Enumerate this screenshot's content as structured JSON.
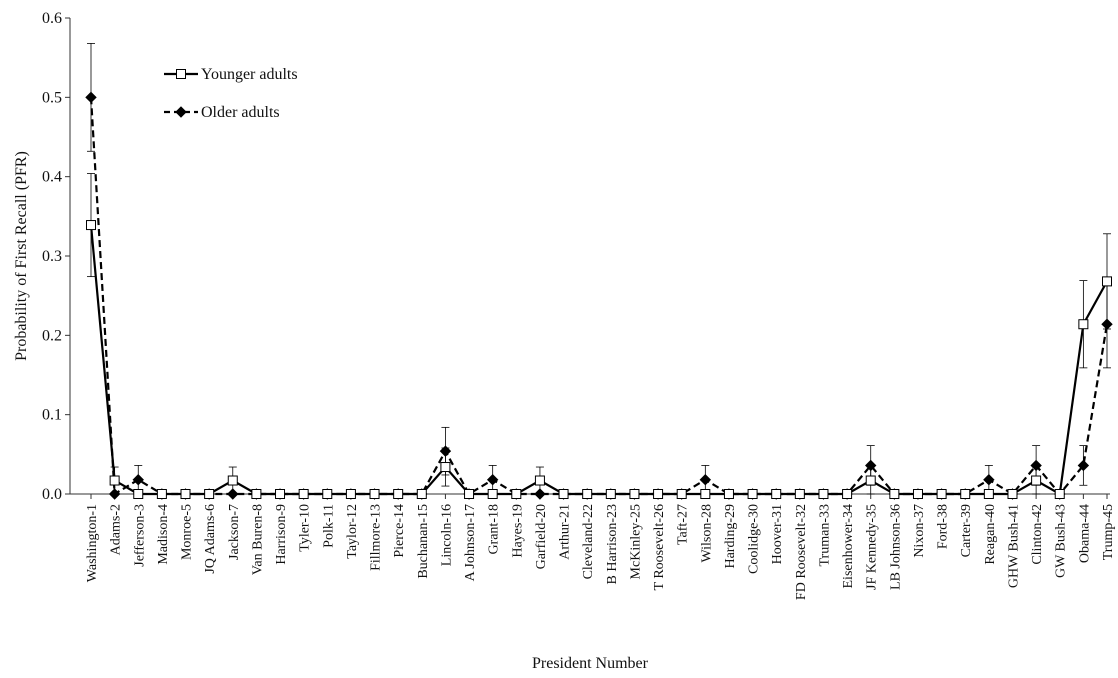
{
  "chart_data": {
    "type": "line",
    "xlabel": "President Number",
    "ylabel": "Probability of First Recall (PFR)",
    "ylim": [
      0,
      0.6
    ],
    "yticks": [
      "0.0",
      "0.1",
      "0.2",
      "0.3",
      "0.4",
      "0.5",
      "0.6"
    ],
    "grid": false,
    "legend_position": "top-left",
    "categories": [
      "Washington-1",
      "Adams-2",
      "Jefferson-3",
      "Madison-4",
      "Monroe-5",
      "JQ Adams-6",
      "Jackson-7",
      "Van Buren-8",
      "Harrison-9",
      "Tyler-10",
      "Polk-11",
      "Taylor-12",
      "Fillmore-13",
      "Pierce-14",
      "Buchanan-15",
      "Lincoln-16",
      "A Johnson-17",
      "Grant-18",
      "Hayes-19",
      "Garfield-20",
      "Arthur-21",
      "Cleveland-22",
      "B Harrison-23",
      "McKinley-25",
      "T Roosevelt-26",
      "Taft-27",
      "Wilson-28",
      "Harding-29",
      "Coolidge-30",
      "Hoover-31",
      "FD Roosevelt-32",
      "Truman-33",
      "Eisenhower-34",
      "JF Kennedy-35",
      "LB Johnson-36",
      "Nixon-37",
      "Ford-38",
      "Carter-39",
      "Reagan-40",
      "GHW Bush-41",
      "Clinton-42",
      "GW Bush-43",
      "Obama-44",
      "Trump-45"
    ],
    "series": [
      {
        "name": "Younger adults",
        "line_style": "solid",
        "marker": "open-square",
        "color": "#000000",
        "values": [
          0.339,
          0.017,
          0,
          0,
          0,
          0,
          0.017,
          0,
          0,
          0,
          0,
          0,
          0,
          0,
          0,
          0.034,
          0,
          0,
          0,
          0.017,
          0,
          0,
          0,
          0,
          0,
          0,
          0,
          0,
          0,
          0,
          0,
          0,
          0,
          0.017,
          0,
          0,
          0,
          0,
          0,
          0,
          0.017,
          0,
          0.214,
          0.268
        ],
        "errors": [
          0.065,
          0.017,
          0,
          0,
          0,
          0,
          0.017,
          0,
          0,
          0,
          0,
          0,
          0,
          0,
          0,
          0.024,
          0,
          0,
          0,
          0.017,
          0,
          0,
          0,
          0,
          0,
          0,
          0,
          0,
          0,
          0,
          0,
          0,
          0,
          0.017,
          0,
          0,
          0,
          0,
          0,
          0,
          0.017,
          0,
          0.055,
          0.06
        ]
      },
      {
        "name": "Older adults",
        "line_style": "dashed",
        "marker": "filled-diamond",
        "color": "#000000",
        "values": [
          0.5,
          0,
          0.018,
          0,
          0,
          0,
          0,
          0,
          0,
          0,
          0,
          0,
          0,
          0,
          0,
          0.054,
          0,
          0.018,
          0,
          0,
          0,
          0,
          0,
          0,
          0,
          0,
          0.018,
          0,
          0,
          0,
          0,
          0,
          0,
          0.036,
          0,
          0,
          0,
          0,
          0.018,
          0,
          0.036,
          0,
          0.036,
          0.214
        ],
        "errors": [
          0.068,
          0,
          0.018,
          0,
          0,
          0,
          0,
          0,
          0,
          0,
          0,
          0,
          0,
          0,
          0,
          0.03,
          0,
          0.018,
          0,
          0,
          0,
          0,
          0,
          0,
          0,
          0,
          0.018,
          0,
          0,
          0,
          0,
          0,
          0,
          0.025,
          0,
          0,
          0,
          0,
          0.018,
          0,
          0.025,
          0,
          0.025,
          0.055
        ]
      }
    ]
  }
}
